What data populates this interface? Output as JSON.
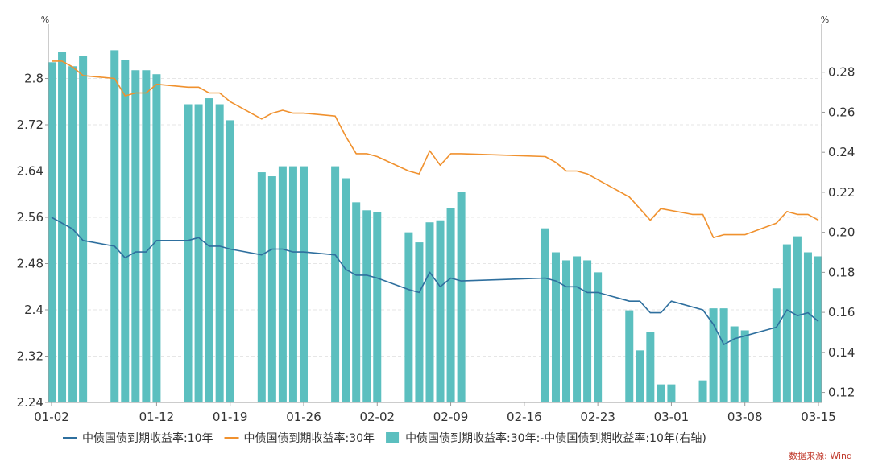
{
  "chart_data": {
    "type": "bar+line",
    "left_axis": {
      "unit": "%",
      "ylim": [
        2.24,
        2.88
      ],
      "ticks": [
        2.24,
        2.32,
        2.4,
        2.48,
        2.56,
        2.64,
        2.72,
        2.8
      ]
    },
    "right_axis": {
      "unit": "%",
      "ylim": [
        0.115,
        0.3
      ],
      "ticks": [
        0.12,
        0.14,
        0.16,
        0.18,
        0.2,
        0.22,
        0.24,
        0.26,
        0.28
      ]
    },
    "x_tick_labels": [
      "01-02",
      "01-12",
      "01-19",
      "01-26",
      "02-02",
      "02-09",
      "02-16",
      "02-23",
      "03-01",
      "03-08",
      "03-15"
    ],
    "x_ticks": [
      {
        "label": "01-02",
        "day": 0
      },
      {
        "label": "01-12",
        "day": 10
      },
      {
        "label": "01-19",
        "day": 17
      },
      {
        "label": "01-26",
        "day": 24
      },
      {
        "label": "02-02",
        "day": 31
      },
      {
        "label": "02-09",
        "day": 38
      },
      {
        "label": "02-16",
        "day": 45
      },
      {
        "label": "02-23",
        "day": 52
      },
      {
        "label": "03-01",
        "day": 59
      },
      {
        "label": "03-08",
        "day": 66
      },
      {
        "label": "03-15",
        "day": 73
      }
    ],
    "grid": true,
    "legend_position": "bottom",
    "series": [
      {
        "name": "中债国债到期收益率:10年",
        "type": "line",
        "axis": "left",
        "color": "#2e6f9e",
        "points": [
          [
            0,
            2.56
          ],
          [
            1,
            2.55
          ],
          [
            2,
            2.54
          ],
          [
            3,
            2.52
          ],
          [
            6,
            2.51
          ],
          [
            7,
            2.49
          ],
          [
            8,
            2.5
          ],
          [
            9,
            2.5
          ],
          [
            10,
            2.52
          ],
          [
            13,
            2.52
          ],
          [
            14,
            2.525
          ],
          [
            15,
            2.51
          ],
          [
            16,
            2.51
          ],
          [
            17,
            2.505
          ],
          [
            20,
            2.495
          ],
          [
            21,
            2.505
          ],
          [
            22,
            2.505
          ],
          [
            23,
            2.5
          ],
          [
            24,
            2.5
          ],
          [
            27,
            2.495
          ],
          [
            28,
            2.47
          ],
          [
            29,
            2.46
          ],
          [
            30,
            2.46
          ],
          [
            31,
            2.455
          ],
          [
            34,
            2.435
          ],
          [
            35,
            2.43
          ],
          [
            36,
            2.465
          ],
          [
            37,
            2.44
          ],
          [
            38,
            2.455
          ],
          [
            39,
            2.45
          ],
          [
            47,
            2.455
          ],
          [
            48,
            2.45
          ],
          [
            49,
            2.44
          ],
          [
            50,
            2.44
          ],
          [
            51,
            2.43
          ],
          [
            52,
            2.43
          ],
          [
            53,
            2.425
          ],
          [
            55,
            2.415
          ],
          [
            56,
            2.415
          ],
          [
            57,
            2.395
          ],
          [
            58,
            2.395
          ],
          [
            59,
            2.415
          ],
          [
            62,
            2.4
          ],
          [
            63,
            2.375
          ],
          [
            64,
            2.34
          ],
          [
            65,
            2.35
          ],
          [
            66,
            2.355
          ],
          [
            69,
            2.37
          ],
          [
            70,
            2.4
          ],
          [
            71,
            2.39
          ],
          [
            72,
            2.395
          ],
          [
            73,
            2.38
          ]
        ]
      },
      {
        "name": "中债国债到期收益率:30年",
        "type": "line",
        "axis": "left",
        "color": "#f0912e",
        "points": [
          [
            0,
            2.83
          ],
          [
            1,
            2.83
          ],
          [
            2,
            2.82
          ],
          [
            3,
            2.805
          ],
          [
            6,
            2.8
          ],
          [
            7,
            2.77
          ],
          [
            8,
            2.775
          ],
          [
            9,
            2.775
          ],
          [
            10,
            2.79
          ],
          [
            13,
            2.785
          ],
          [
            14,
            2.785
          ],
          [
            15,
            2.775
          ],
          [
            16,
            2.775
          ],
          [
            17,
            2.76
          ],
          [
            20,
            2.73
          ],
          [
            21,
            2.74
          ],
          [
            22,
            2.745
          ],
          [
            23,
            2.74
          ],
          [
            24,
            2.74
          ],
          [
            27,
            2.735
          ],
          [
            28,
            2.7
          ],
          [
            29,
            2.67
          ],
          [
            30,
            2.67
          ],
          [
            31,
            2.665
          ],
          [
            34,
            2.64
          ],
          [
            35,
            2.635
          ],
          [
            36,
            2.675
          ],
          [
            37,
            2.65
          ],
          [
            38,
            2.67
          ],
          [
            39,
            2.67
          ],
          [
            47,
            2.665
          ],
          [
            48,
            2.655
          ],
          [
            49,
            2.64
          ],
          [
            50,
            2.64
          ],
          [
            51,
            2.635
          ],
          [
            52,
            2.625
          ],
          [
            55,
            2.595
          ],
          [
            56,
            2.575
          ],
          [
            57,
            2.555
          ],
          [
            58,
            2.575
          ],
          [
            61,
            2.565
          ],
          [
            62,
            2.565
          ],
          [
            63,
            2.525
          ],
          [
            64,
            2.53
          ],
          [
            66,
            2.53
          ],
          [
            69,
            2.55
          ],
          [
            70,
            2.57
          ],
          [
            71,
            2.565
          ],
          [
            72,
            2.565
          ],
          [
            73,
            2.555
          ]
        ]
      },
      {
        "name": "中债国债到期收益率:30年:-中债国债到期收益率:10年(右轴)",
        "type": "bar",
        "axis": "right",
        "color": "#5bbfbf",
        "points": [
          [
            0,
            0.285
          ],
          [
            1,
            0.29
          ],
          [
            2,
            0.283
          ],
          [
            3,
            0.288
          ],
          [
            6,
            0.291
          ],
          [
            7,
            0.286
          ],
          [
            8,
            0.281
          ],
          [
            9,
            0.281
          ],
          [
            10,
            0.279
          ],
          [
            13,
            0.264
          ],
          [
            14,
            0.264
          ],
          [
            15,
            0.267
          ],
          [
            16,
            0.264
          ],
          [
            17,
            0.256
          ],
          [
            20,
            0.23
          ],
          [
            21,
            0.228
          ],
          [
            22,
            0.233
          ],
          [
            23,
            0.233
          ],
          [
            24,
            0.233
          ],
          [
            27,
            0.233
          ],
          [
            28,
            0.227
          ],
          [
            29,
            0.215
          ],
          [
            30,
            0.211
          ],
          [
            31,
            0.21
          ],
          [
            34,
            0.2
          ],
          [
            35,
            0.195
          ],
          [
            36,
            0.205
          ],
          [
            37,
            0.206
          ],
          [
            38,
            0.212
          ],
          [
            39,
            0.22
          ],
          [
            47,
            0.202
          ],
          [
            48,
            0.19
          ],
          [
            49,
            0.186
          ],
          [
            50,
            0.188
          ],
          [
            51,
            0.186
          ],
          [
            52,
            0.18
          ],
          [
            55,
            0.161
          ],
          [
            56,
            0.141
          ],
          [
            57,
            0.15
          ],
          [
            58,
            0.124
          ],
          [
            59,
            0.124
          ],
          [
            62,
            0.126
          ],
          [
            63,
            0.162
          ],
          [
            64,
            0.162
          ],
          [
            65,
            0.153
          ],
          [
            66,
            0.151
          ],
          [
            69,
            0.172
          ],
          [
            70,
            0.194
          ],
          [
            71,
            0.198
          ],
          [
            72,
            0.19
          ],
          [
            73,
            0.188
          ]
        ]
      }
    ]
  },
  "source": "数据来源: Wind"
}
